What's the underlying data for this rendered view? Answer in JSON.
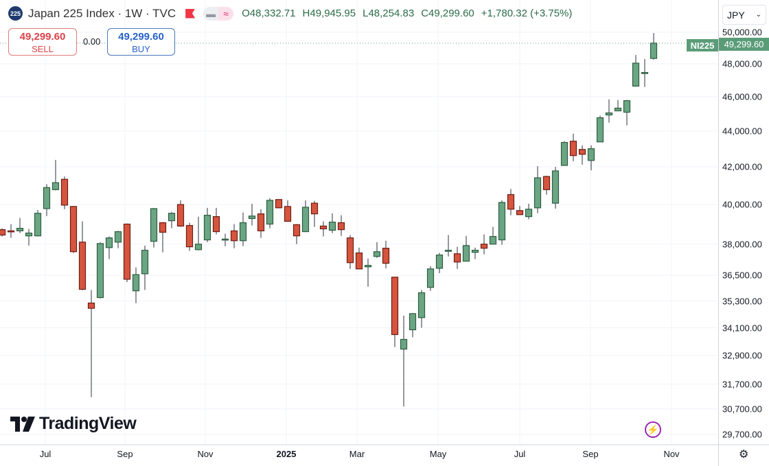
{
  "header": {
    "symbol_badge": "225",
    "title": "Japan 225 Index · 1W · TVC",
    "open": "O48,332.71",
    "high": "H49,945.95",
    "low": "L48,254.83",
    "close": "C49,299.60",
    "change": "+1,780.32 (+3.75%)"
  },
  "trade": {
    "sell_price": "49,299.60",
    "sell_label": "SELL",
    "spread": "0.00",
    "buy_price": "49,299.60",
    "buy_label": "BUY"
  },
  "currency": "JPY",
  "symbol_tag": "NI225",
  "last_price": "49,299.60",
  "logo_text": "TradingView",
  "colors": {
    "up": "#6ba583",
    "down": "#d5553f",
    "up_border": "#2d5e40",
    "down_border": "#6e1c12",
    "price_tag": "#5b9c78"
  },
  "chart_data": {
    "type": "candlestick",
    "interval": "1W",
    "scale": "log",
    "ylim": [
      29700,
      50000
    ],
    "grid": true,
    "y_ticks": [
      "50,000.00",
      "48,000.00",
      "46,000.00",
      "44,000.00",
      "42,000.00",
      "40,000.00",
      "38,000.00",
      "36,500.00",
      "35,300.00",
      "34,100.00",
      "32,900.00",
      "31,700.00",
      "30,700.00",
      "29,700.00"
    ],
    "x_ticks": [
      "Jul",
      "Sep",
      "Nov",
      "2025",
      "Mar",
      "May",
      "Jul",
      "Sep",
      "Nov"
    ],
    "candles_ohlc": [
      [
        38720,
        38790,
        38380,
        38450
      ],
      [
        38660,
        39000,
        38310,
        38640
      ],
      [
        38660,
        39310,
        38550,
        38790
      ],
      [
        38410,
        38760,
        37930,
        38550
      ],
      [
        38410,
        39720,
        38380,
        39550
      ],
      [
        39790,
        41070,
        39410,
        40890
      ],
      [
        40780,
        42380,
        40740,
        41150
      ],
      [
        41330,
        41480,
        39760,
        39970
      ],
      [
        39900,
        39930,
        37570,
        37630
      ],
      [
        38100,
        39140,
        35800,
        35840
      ],
      [
        35210,
        35810,
        31170,
        34970
      ],
      [
        35460,
        38100,
        35420,
        38030
      ],
      [
        37830,
        38380,
        37270,
        38310
      ],
      [
        38100,
        38660,
        37800,
        38620
      ],
      [
        39000,
        39030,
        36180,
        36310
      ],
      [
        35770,
        36870,
        35210,
        36530
      ],
      [
        36570,
        37930,
        35810,
        37700
      ],
      [
        38140,
        39820,
        37830,
        39790
      ],
      [
        39070,
        39100,
        37600,
        38590
      ],
      [
        39170,
        39620,
        38790,
        39550
      ],
      [
        40000,
        40220,
        38860,
        38900
      ],
      [
        38930,
        39070,
        37670,
        37870
      ],
      [
        37730,
        39380,
        37700,
        38000
      ],
      [
        38210,
        39830,
        38100,
        39450
      ],
      [
        39380,
        39830,
        38480,
        38620
      ],
      [
        38240,
        38520,
        37900,
        38250
      ],
      [
        38660,
        39000,
        37800,
        38170
      ],
      [
        38170,
        39590,
        37900,
        39070
      ],
      [
        39280,
        40040,
        38930,
        39410
      ],
      [
        39520,
        39760,
        38310,
        38660
      ],
      [
        39000,
        40330,
        38790,
        40220
      ],
      [
        40260,
        40280,
        39810,
        39830
      ],
      [
        39900,
        40220,
        39120,
        39140
      ],
      [
        38970,
        39000,
        38000,
        38410
      ],
      [
        38620,
        40220,
        38600,
        39860
      ],
      [
        40070,
        40190,
        38860,
        39520
      ],
      [
        38900,
        39140,
        38380,
        38760
      ],
      [
        38690,
        39550,
        38550,
        39100
      ],
      [
        39070,
        39450,
        38410,
        38720
      ],
      [
        38310,
        38450,
        36800,
        37100
      ],
      [
        37570,
        37830,
        36780,
        36800
      ],
      [
        36900,
        37300,
        35960,
        36970
      ],
      [
        37400,
        38100,
        37330,
        37630
      ],
      [
        37800,
        38170,
        36830,
        37070
      ],
      [
        36410,
        36410,
        33260,
        33800
      ],
      [
        33170,
        34640,
        30790,
        33590
      ],
      [
        34010,
        34760,
        33680,
        34730
      ],
      [
        34550,
        35810,
        34100,
        35680
      ],
      [
        35930,
        36930,
        35770,
        36800
      ],
      [
        36830,
        37570,
        36600,
        37470
      ],
      [
        37670,
        38450,
        37400,
        37700
      ],
      [
        37530,
        37870,
        36800,
        37130
      ],
      [
        37170,
        38410,
        37170,
        37930
      ],
      [
        37600,
        37830,
        37270,
        37700
      ],
      [
        38000,
        38480,
        37500,
        37800
      ],
      [
        38000,
        38860,
        37980,
        38380
      ],
      [
        38210,
        40220,
        37970,
        40110
      ],
      [
        40520,
        40820,
        39450,
        39760
      ],
      [
        39690,
        39930,
        39480,
        39480
      ],
      [
        39380,
        40040,
        39240,
        39760
      ],
      [
        39830,
        42040,
        39550,
        41410
      ],
      [
        41480,
        41520,
        40520,
        40780
      ],
      [
        40070,
        42000,
        39790,
        41780
      ],
      [
        42080,
        43420,
        42060,
        43350
      ],
      [
        43420,
        43850,
        42310,
        42620
      ],
      [
        42960,
        43190,
        42120,
        42690
      ],
      [
        42350,
        43190,
        41810,
        43000
      ],
      [
        43380,
        44880,
        43380,
        44760
      ],
      [
        44920,
        45840,
        44480,
        45040
      ],
      [
        45160,
        45800,
        45160,
        45320
      ],
      [
        45080,
        45800,
        44320,
        45760
      ],
      [
        46630,
        48550,
        46600,
        48040
      ],
      [
        47420,
        48300,
        46580,
        47460
      ],
      [
        48332.71,
        49945.95,
        48254.83,
        49299.6
      ]
    ]
  }
}
